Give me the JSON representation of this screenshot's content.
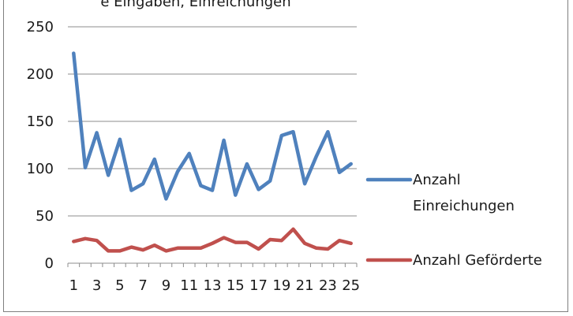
{
  "header": {
    "cut_text": "e Eingaben, Einreichungen"
  },
  "colors": {
    "series_1": "#4f81bd",
    "series_2": "#c0504d",
    "grid": "#8c8c8c",
    "frame": "#7f7f7f"
  },
  "chart_data": {
    "type": "line",
    "title": "",
    "xlabel": "",
    "ylabel": "",
    "ylim": [
      0,
      250
    ],
    "yticks": [
      0,
      50,
      100,
      150,
      200,
      250
    ],
    "grid": "horizontal",
    "legend_position": "right",
    "x": [
      1,
      2,
      3,
      4,
      5,
      6,
      7,
      8,
      9,
      10,
      11,
      12,
      13,
      14,
      15,
      16,
      17,
      18,
      19,
      20,
      21,
      22,
      23,
      24,
      25
    ],
    "xtick_labels": [
      "1",
      "3",
      "5",
      "7",
      "9",
      "11",
      "13",
      "15",
      "17",
      "19",
      "21",
      "23",
      "25"
    ],
    "series": [
      {
        "name": "Anzahl Einreichungen",
        "legend_lines": [
          "Anzahl",
          "Einreichungen"
        ],
        "values": [
          222,
          101,
          138,
          93,
          131,
          77,
          84,
          110,
          68,
          97,
          116,
          82,
          77,
          130,
          72,
          105,
          78,
          87,
          135,
          139,
          84,
          113,
          139,
          96,
          105
        ]
      },
      {
        "name": "Anzahl Geförderte",
        "legend_lines": [
          "Anzahl Geförderte"
        ],
        "values": [
          23,
          26,
          24,
          13,
          13,
          17,
          14,
          19,
          13,
          16,
          16,
          16,
          21,
          27,
          22,
          22,
          15,
          25,
          24,
          36,
          21,
          16,
          15,
          24,
          21
        ]
      }
    ]
  }
}
